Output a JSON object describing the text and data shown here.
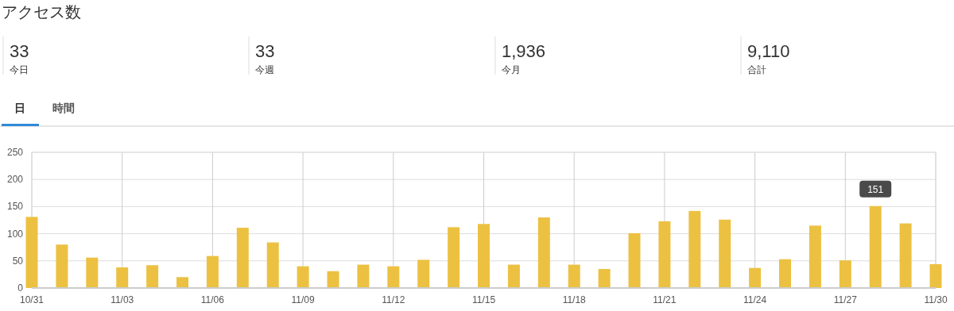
{
  "chart_data": {
    "type": "bar",
    "title": "アクセス数",
    "annotations": [
      "33",
      "今日",
      "33",
      "今週",
      "1,936",
      "今月",
      "9,110",
      "合計",
      "日",
      "時間"
    ],
    "categories": [
      "10/31",
      null,
      null,
      "11/03",
      null,
      null,
      "11/06",
      null,
      null,
      "11/09",
      null,
      null,
      "11/12",
      null,
      null,
      "11/15",
      null,
      null,
      "11/18",
      null,
      null,
      "11/21",
      null,
      null,
      "11/24",
      null,
      null,
      "11/27",
      null,
      null,
      "11/30"
    ],
    "values": [
      131,
      80,
      56,
      38,
      42,
      20,
      59,
      111,
      84,
      40,
      31,
      43,
      40,
      52,
      112,
      118,
      43,
      130,
      43,
      35,
      101,
      123,
      142,
      126,
      37,
      53,
      115,
      51,
      151,
      119,
      44
    ],
    "value_labels": [
      null,
      null,
      null,
      null,
      null,
      null,
      null,
      null,
      null,
      null,
      null,
      null,
      null,
      null,
      null,
      null,
      null,
      null,
      null,
      null,
      null,
      null,
      null,
      null,
      null,
      null,
      null,
      null,
      "151",
      null,
      null
    ],
    "color": "#ecc142",
    "ylim": [
      0,
      250
    ],
    "yticks": [
      0,
      50,
      100,
      150,
      200,
      250
    ],
    "grid": true
  }
}
